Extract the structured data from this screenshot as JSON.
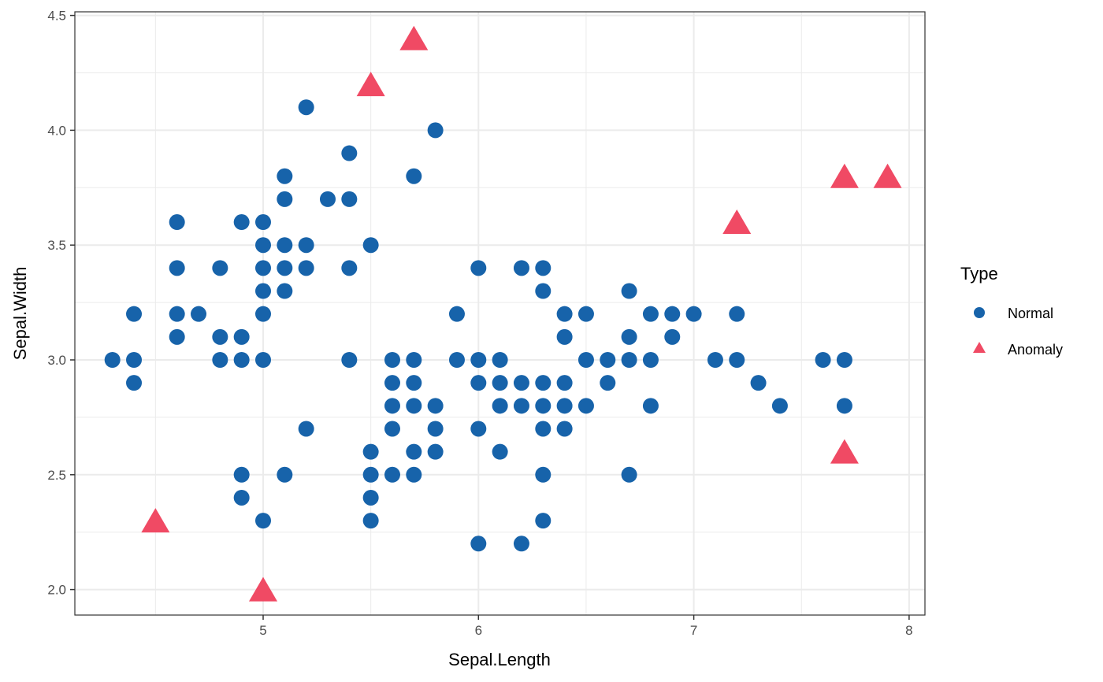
{
  "chart_data": {
    "type": "scatter",
    "title": "",
    "xlabel": "Sepal.Length",
    "ylabel": "Sepal.Width",
    "xlim": [
      4.21,
      8.15
    ],
    "ylim": [
      1.89,
      4.51
    ],
    "x_ticks": [
      5,
      6,
      7,
      8
    ],
    "x_tick_labels": [
      "5",
      "6",
      "7",
      "8"
    ],
    "y_ticks": [
      2.0,
      2.5,
      3.0,
      3.5,
      4.0,
      4.5
    ],
    "y_tick_labels": [
      "2.0",
      "2.5",
      "3.0",
      "3.5",
      "4.0",
      "4.5"
    ],
    "x_minor": [
      4.5,
      5.5,
      6.5,
      7.5
    ],
    "y_minor": [
      2.25,
      2.75,
      3.25,
      3.75,
      4.25
    ],
    "grid": true,
    "legend": {
      "title": "Type",
      "position": "right",
      "entries": [
        {
          "label": "Normal",
          "shape": "circle",
          "color": "#1763AA"
        },
        {
          "label": "Anomaly",
          "shape": "triangle",
          "color": "#F04A64"
        }
      ]
    },
    "series": [
      {
        "name": "Normal",
        "shape": "circle",
        "color": "#1763AA",
        "points": [
          [
            4.3,
            3.0
          ],
          [
            4.4,
            3.2
          ],
          [
            4.4,
            3.0
          ],
          [
            4.4,
            2.9
          ],
          [
            4.6,
            3.6
          ],
          [
            4.6,
            3.4
          ],
          [
            4.6,
            3.2
          ],
          [
            4.6,
            3.1
          ],
          [
            4.7,
            3.2
          ],
          [
            4.8,
            3.4
          ],
          [
            4.8,
            3.1
          ],
          [
            4.8,
            3.0
          ],
          [
            4.9,
            3.6
          ],
          [
            4.9,
            3.1
          ],
          [
            4.9,
            3.0
          ],
          [
            4.9,
            2.5
          ],
          [
            4.9,
            2.4
          ],
          [
            5.0,
            3.6
          ],
          [
            5.0,
            3.5
          ],
          [
            5.0,
            3.4
          ],
          [
            5.0,
            3.3
          ],
          [
            5.0,
            3.2
          ],
          [
            5.0,
            3.0
          ],
          [
            5.0,
            2.3
          ],
          [
            5.1,
            3.8
          ],
          [
            5.1,
            3.7
          ],
          [
            5.1,
            3.5
          ],
          [
            5.1,
            3.4
          ],
          [
            5.1,
            3.3
          ],
          [
            5.1,
            2.5
          ],
          [
            5.2,
            4.1
          ],
          [
            5.2,
            3.5
          ],
          [
            5.2,
            3.4
          ],
          [
            5.2,
            2.7
          ],
          [
            5.3,
            3.7
          ],
          [
            5.4,
            3.9
          ],
          [
            5.4,
            3.7
          ],
          [
            5.4,
            3.4
          ],
          [
            5.4,
            3.0
          ],
          [
            5.5,
            3.5
          ],
          [
            5.5,
            2.6
          ],
          [
            5.5,
            2.5
          ],
          [
            5.5,
            2.4
          ],
          [
            5.5,
            2.3
          ],
          [
            5.6,
            3.0
          ],
          [
            5.6,
            2.9
          ],
          [
            5.6,
            2.8
          ],
          [
            5.6,
            2.7
          ],
          [
            5.6,
            2.5
          ],
          [
            5.7,
            3.8
          ],
          [
            5.7,
            3.0
          ],
          [
            5.7,
            2.9
          ],
          [
            5.7,
            2.8
          ],
          [
            5.7,
            2.6
          ],
          [
            5.7,
            2.5
          ],
          [
            5.8,
            4.0
          ],
          [
            5.8,
            2.8
          ],
          [
            5.8,
            2.7
          ],
          [
            5.8,
            2.6
          ],
          [
            5.9,
            3.2
          ],
          [
            5.9,
            3.0
          ],
          [
            6.0,
            3.4
          ],
          [
            6.0,
            3.0
          ],
          [
            6.0,
            2.9
          ],
          [
            6.0,
            2.7
          ],
          [
            6.0,
            2.2
          ],
          [
            6.1,
            3.0
          ],
          [
            6.1,
            2.9
          ],
          [
            6.1,
            2.8
          ],
          [
            6.1,
            2.6
          ],
          [
            6.2,
            3.4
          ],
          [
            6.2,
            2.9
          ],
          [
            6.2,
            2.8
          ],
          [
            6.2,
            2.2
          ],
          [
            6.3,
            3.4
          ],
          [
            6.3,
            3.3
          ],
          [
            6.3,
            2.9
          ],
          [
            6.3,
            2.8
          ],
          [
            6.3,
            2.7
          ],
          [
            6.3,
            2.5
          ],
          [
            6.3,
            2.3
          ],
          [
            6.4,
            3.2
          ],
          [
            6.4,
            3.1
          ],
          [
            6.4,
            2.9
          ],
          [
            6.4,
            2.8
          ],
          [
            6.4,
            2.7
          ],
          [
            6.5,
            3.2
          ],
          [
            6.5,
            3.0
          ],
          [
            6.5,
            2.8
          ],
          [
            6.6,
            3.0
          ],
          [
            6.6,
            2.9
          ],
          [
            6.7,
            3.3
          ],
          [
            6.7,
            3.1
          ],
          [
            6.7,
            3.0
          ],
          [
            6.7,
            2.5
          ],
          [
            6.8,
            3.2
          ],
          [
            6.8,
            3.0
          ],
          [
            6.8,
            2.8
          ],
          [
            6.9,
            3.2
          ],
          [
            6.9,
            3.1
          ],
          [
            7.0,
            3.2
          ],
          [
            7.1,
            3.0
          ],
          [
            7.2,
            3.2
          ],
          [
            7.2,
            3.0
          ],
          [
            7.3,
            2.9
          ],
          [
            7.4,
            2.8
          ],
          [
            7.6,
            3.0
          ],
          [
            7.7,
            3.0
          ],
          [
            7.7,
            2.8
          ]
        ]
      },
      {
        "name": "Anomaly",
        "shape": "triangle",
        "color": "#F04A64",
        "points": [
          [
            5.7,
            4.4
          ],
          [
            5.5,
            4.2
          ],
          [
            7.7,
            3.8
          ],
          [
            7.9,
            3.8
          ],
          [
            7.2,
            3.6
          ],
          [
            7.7,
            2.6
          ],
          [
            4.5,
            2.3
          ],
          [
            5.0,
            2.0
          ]
        ]
      }
    ]
  }
}
